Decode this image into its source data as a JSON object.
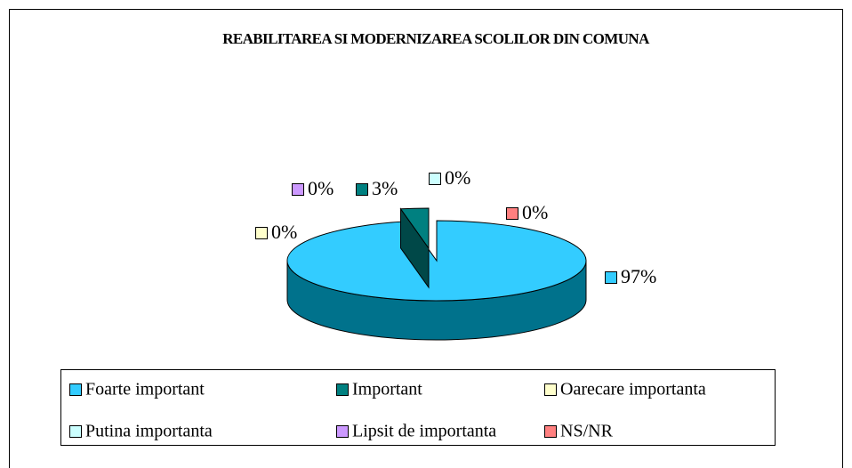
{
  "chart_data": {
    "type": "pie",
    "title": "REABILITAREA SI MODERNIZAREA SCOLILOR DIN COMUNA",
    "categories": [
      "Foarte important",
      "Important",
      "Oarecare importanta",
      "Putina importanta",
      "Lipsit de importanta",
      "NS/NR"
    ],
    "values": [
      97,
      3,
      0,
      0,
      0,
      0
    ],
    "value_labels": [
      "97%",
      "3%",
      "0%",
      "0%",
      "0%",
      "0%"
    ],
    "colors": [
      "#33ccff",
      "#008080",
      "#ffffcc",
      "#ccffff",
      "#cc99ff",
      "#ff8080"
    ],
    "legend": "bottom"
  }
}
